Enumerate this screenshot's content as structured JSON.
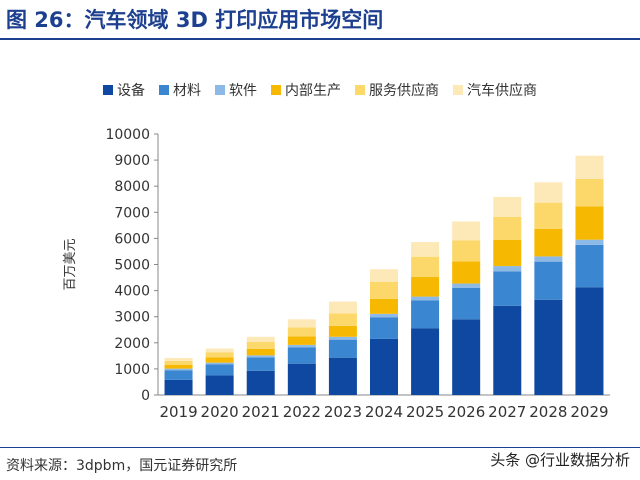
{
  "title": "图 26：汽车领域 3D 打印应用市场空间",
  "source": "资料来源：3dpbm，国元证券研究所",
  "watermark": "头条 @行业数据分析",
  "colors": {
    "title": "#1d3f8f"
  },
  "chart_data": {
    "type": "bar",
    "stacked": true,
    "ylabel": "百万美元",
    "xlabel": "",
    "ylim": [
      0,
      10000
    ],
    "yticks": [
      0,
      1000,
      2000,
      3000,
      4000,
      5000,
      6000,
      7000,
      8000,
      9000,
      10000
    ],
    "grid": false,
    "legend_position": "top",
    "categories": [
      "2019",
      "2020",
      "2021",
      "2022",
      "2023",
      "2024",
      "2025",
      "2026",
      "2027",
      "2028",
      "2029"
    ],
    "series": [
      {
        "name": "设备",
        "color": "#0e48a0",
        "values": [
          580,
          750,
          930,
          1200,
          1430,
          2150,
          2560,
          2900,
          3420,
          3650,
          4130
        ]
      },
      {
        "name": "材料",
        "color": "#3a86d0",
        "values": [
          370,
          420,
          510,
          620,
          690,
          830,
          1060,
          1200,
          1320,
          1460,
          1620
        ]
      },
      {
        "name": "软件",
        "color": "#8db9e6",
        "values": [
          60,
          70,
          80,
          100,
          110,
          130,
          150,
          170,
          200,
          200,
          200
        ]
      },
      {
        "name": "内部生产",
        "color": "#f6b800",
        "values": [
          150,
          200,
          250,
          320,
          420,
          570,
          750,
          850,
          1000,
          1060,
          1280
        ]
      },
      {
        "name": "服务供应商",
        "color": "#fcd86a",
        "values": [
          150,
          200,
          260,
          350,
          480,
          660,
          780,
          800,
          890,
          1000,
          1050
        ]
      },
      {
        "name": "汽车供应商",
        "color": "#fde9b8",
        "values": [
          110,
          140,
          200,
          310,
          450,
          480,
          560,
          730,
          760,
          780,
          890
        ]
      }
    ]
  }
}
